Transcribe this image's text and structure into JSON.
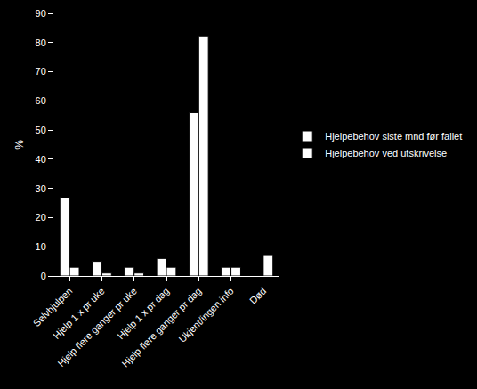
{
  "chart_data": {
    "type": "bar",
    "categories": [
      "Selvhjulpen",
      "Hjelp 1 x pr uke",
      "Hjelp flere ganger pr uke",
      "Hjelp 1 x pr dag",
      "Hjelp flere ganger pr dag",
      "Ukjent/ingen info",
      "Død"
    ],
    "series": [
      {
        "name": "Hjelpebehov siste mnd før fallet",
        "color": "#ffffff",
        "values": [
          27,
          5,
          3,
          6,
          56,
          3,
          0
        ]
      },
      {
        "name": "Hjelpebehov ved utskrivelse",
        "color": "#ffffff",
        "values": [
          3,
          1,
          1,
          3,
          82,
          3,
          7
        ]
      }
    ],
    "y_label": "%",
    "ylim": [
      0,
      90
    ],
    "yticks": [
      0,
      10,
      20,
      30,
      40,
      50,
      60,
      70,
      80,
      90
    ],
    "grid": false,
    "legend": "right"
  }
}
